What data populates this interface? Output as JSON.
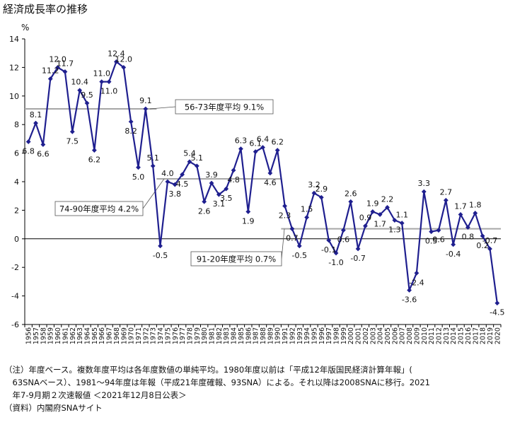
{
  "title": "経済成長率の推移",
  "unit": "%",
  "notes": [
    "（注）年度ベース。複数年度平均は各年度数値の単純平均。1980年度以前は「平成12年版国民経済計算年報」(",
    "　63SNAベース）、1981～94年度は年報（平成21年度確報、93SNA）による。それ以降は2008SNAに移行。2021",
    "　年7-9月期２次速報値 ＜2021年12月8日公表＞",
    "（資料）内閣府SNAサイト"
  ],
  "colors": {
    "line": "#1f1f8f",
    "avg": "#a6a6a6",
    "grid": "#000000"
  },
  "chart_data": {
    "type": "line",
    "title": "経済成長率の推移",
    "ylabel": "%",
    "ylim": [
      -6,
      14
    ],
    "yticks": [
      -6,
      -4,
      -2,
      0,
      2,
      4,
      6,
      8,
      10,
      12,
      14
    ],
    "grid": false,
    "x": [
      "1956",
      "1957",
      "1958",
      "1959",
      "1960",
      "1961",
      "1962",
      "1963",
      "1964",
      "1965",
      "1966",
      "1967",
      "1968",
      "1969",
      "1970",
      "1971",
      "1972",
      "1973",
      "1974",
      "1975",
      "1976",
      "1977",
      "1978",
      "1979",
      "1980",
      "1981",
      "1982",
      "1983",
      "1984",
      "1985",
      "1986",
      "1987",
      "1988",
      "1989",
      "1990",
      "1991",
      "1992",
      "1993",
      "1994",
      "1995",
      "1996",
      "1997",
      "1998",
      "1999",
      "2000",
      "2001",
      "2002",
      "2003",
      "2004",
      "2005",
      "2006",
      "2007",
      "2008",
      "2009",
      "2010",
      "2011",
      "2012",
      "2013",
      "2014",
      "2015",
      "2016",
      "2017",
      "2018",
      "2019",
      "2020"
    ],
    "series": [
      {
        "values": [
          6.8,
          8.1,
          6.6,
          11.2,
          12.0,
          11.7,
          7.5,
          10.4,
          9.5,
          6.2,
          11.0,
          11.0,
          12.4,
          12.0,
          8.2,
          5.0,
          9.1,
          5.1,
          -0.5,
          4.0,
          3.8,
          4.5,
          5.4,
          5.1,
          2.6,
          3.9,
          3.1,
          3.5,
          4.8,
          6.3,
          1.9,
          6.1,
          6.4,
          4.6,
          6.2,
          2.3,
          0.7,
          -0.5,
          1.5,
          3.2,
          2.9,
          -0.1,
          -1.0,
          0.6,
          2.6,
          -0.7,
          0.9,
          1.9,
          1.7,
          2.2,
          1.3,
          1.1,
          -3.6,
          -2.4,
          3.3,
          0.5,
          0.6,
          2.7,
          -0.4,
          1.7,
          0.8,
          1.8,
          0.2,
          -0.7,
          -4.5
        ]
      }
    ],
    "data_labels": [
      {
        "i": 0,
        "text": "6.8"
      },
      {
        "i": 1,
        "text": "8.1"
      },
      {
        "i": 2,
        "text": "6.6"
      },
      {
        "i": 3,
        "text": "11.2"
      },
      {
        "i": 4,
        "text": "12.0"
      },
      {
        "i": 5,
        "text": "11.7"
      },
      {
        "i": 6,
        "text": "7.5"
      },
      {
        "i": 7,
        "text": "10.4"
      },
      {
        "i": 8,
        "text": "9.5"
      },
      {
        "i": 9,
        "text": "6.2"
      },
      {
        "i": 10,
        "text": "11.0"
      },
      {
        "i": 11,
        "text": "11.0"
      },
      {
        "i": 12,
        "text": "12.4"
      },
      {
        "i": 13,
        "text": "12.0"
      },
      {
        "i": 14,
        "text": "8.2"
      },
      {
        "i": 15,
        "text": "5.0"
      },
      {
        "i": 16,
        "text": "9.1"
      },
      {
        "i": 17,
        "text": "5.1"
      },
      {
        "i": 18,
        "text": "-0.5"
      },
      {
        "i": 19,
        "text": "4.0"
      },
      {
        "i": 20,
        "text": "3.8"
      },
      {
        "i": 21,
        "text": "4.5"
      },
      {
        "i": 22,
        "text": "5.4"
      },
      {
        "i": 23,
        "text": "5.1"
      },
      {
        "i": 24,
        "text": "2.6"
      },
      {
        "i": 25,
        "text": "3.9"
      },
      {
        "i": 26,
        "text": "3.1"
      },
      {
        "i": 28,
        "text": "4.8"
      },
      {
        "i": 27,
        "text": "3.5"
      },
      {
        "i": 29,
        "text": "6.3"
      },
      {
        "i": 30,
        "text": "1.9"
      },
      {
        "i": 31,
        "text": "6.1"
      },
      {
        "i": 32,
        "text": "6.4"
      },
      {
        "i": 33,
        "text": "4.6"
      },
      {
        "i": 34,
        "text": "6.2"
      },
      {
        "i": 35,
        "text": "2.3"
      },
      {
        "i": 36,
        "text": "0.7"
      },
      {
        "i": 37,
        "text": "-0.5"
      },
      {
        "i": 38,
        "text": "1.5"
      },
      {
        "i": 39,
        "text": "3.2"
      },
      {
        "i": 40,
        "text": "2.9"
      },
      {
        "i": 41,
        "text": "-0.1"
      },
      {
        "i": 42,
        "text": "-1.0"
      },
      {
        "i": 43,
        "text": "0.6"
      },
      {
        "i": 44,
        "text": "2.6"
      },
      {
        "i": 45,
        "text": "-0.7"
      },
      {
        "i": 46,
        "text": "0.9"
      },
      {
        "i": 47,
        "text": "1.9"
      },
      {
        "i": 48,
        "text": "1.7"
      },
      {
        "i": 49,
        "text": "2.2"
      },
      {
        "i": 50,
        "text": "1.3"
      },
      {
        "i": 51,
        "text": "1.1"
      },
      {
        "i": 52,
        "text": "-3.6"
      },
      {
        "i": 53,
        "text": "-2.4"
      },
      {
        "i": 54,
        "text": "3.3"
      },
      {
        "i": 55,
        "text": "0.5"
      },
      {
        "i": 56,
        "text": "0.6"
      },
      {
        "i": 57,
        "text": "2.7"
      },
      {
        "i": 58,
        "text": "-0.4"
      },
      {
        "i": 59,
        "text": "1.7"
      },
      {
        "i": 60,
        "text": "0.8"
      },
      {
        "i": 61,
        "text": "1.8"
      },
      {
        "i": 62,
        "text": "0.2"
      },
      {
        "i": 63,
        "text": "-0.7"
      },
      {
        "i": 64,
        "text": "-4.5"
      }
    ],
    "averages": [
      {
        "label": "56-73年度平均 9.1%",
        "value": 9.1,
        "from": "1956",
        "to": "1973"
      },
      {
        "label": "74-90年度平均 4.2%",
        "value": 4.2,
        "from": "1974",
        "to": "1990"
      },
      {
        "label": "91-20年度平均 0.7%",
        "value": 0.7,
        "from": "1991",
        "to": "2020"
      }
    ]
  }
}
